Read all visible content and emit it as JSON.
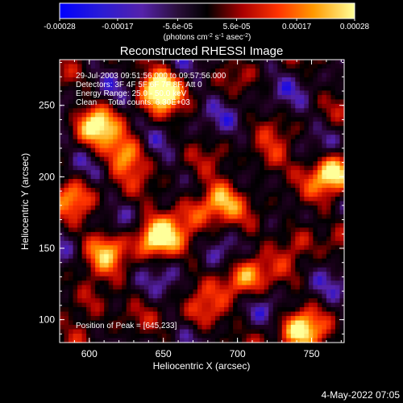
{
  "colorbar": {
    "tick_labels": [
      "-0.00028",
      "-0.00017",
      "-5.6e-05",
      "5.6e-05",
      "0.00017",
      "0.00028"
    ],
    "units_label": "(photons cm",
    "units_exp1": "-2",
    "units_mid": " s",
    "units_exp2": "-1",
    "units_end": " asec",
    "units_exp3": "-2",
    "units_close": ")",
    "range": [
      -0.00028,
      0.00028
    ]
  },
  "chart_data": {
    "type": "heatmap",
    "title": "Reconstructed RHESSI Image",
    "xlabel": "Heliocentric X (arcsec)",
    "ylabel": "Heliocentric Y (arcsec)",
    "xlim": [
      580,
      772
    ],
    "ylim": [
      84,
      282
    ],
    "x_ticks": [
      600,
      650,
      700,
      750
    ],
    "y_ticks": [
      100,
      150,
      200,
      250
    ],
    "annotations": [
      "29-Jul-2003 09:51:56.000 to 09:57:56.000",
      "Detectors: 3F 4F 5F 6F 7F 8F, Att 0",
      "Energy Range: 25.0 - 50.0 keV",
      "Clean     Total counts: 6.30E+03"
    ],
    "peak_label": "Position of Peak = [645,233]",
    "peak_position": [
      645,
      233
    ],
    "hotspots": [
      {
        "x": 648,
        "y": 262,
        "amp": 1.0
      },
      {
        "x": 765,
        "y": 203,
        "amp": 0.95
      },
      {
        "x": 645,
        "y": 158,
        "amp": 0.88
      },
      {
        "x": 605,
        "y": 236,
        "amp": 0.72
      },
      {
        "x": 625,
        "y": 216,
        "amp": 0.7
      },
      {
        "x": 688,
        "y": 184,
        "amp": 0.65
      },
      {
        "x": 705,
        "y": 130,
        "amp": 0.68
      },
      {
        "x": 742,
        "y": 91,
        "amp": 0.78
      },
      {
        "x": 668,
        "y": 176,
        "amp": 0.52
      },
      {
        "x": 612,
        "y": 150,
        "amp": 0.6
      },
      {
        "x": 720,
        "y": 210,
        "amp": 0.45
      },
      {
        "x": 600,
        "y": 112,
        "amp": 0.55
      },
      {
        "x": 740,
        "y": 158,
        "amp": 0.5
      },
      {
        "x": 676,
        "y": 102,
        "amp": 0.45
      },
      {
        "x": 590,
        "y": 188,
        "amp": 0.48
      }
    ],
    "colors": [
      "#0000ff",
      "#5522aa",
      "#220022",
      "#000000",
      "#aa0000",
      "#ff3300",
      "#ff9900",
      "#ffff99"
    ]
  },
  "footer": {
    "timestamp": "4-May-2022 07:05"
  }
}
